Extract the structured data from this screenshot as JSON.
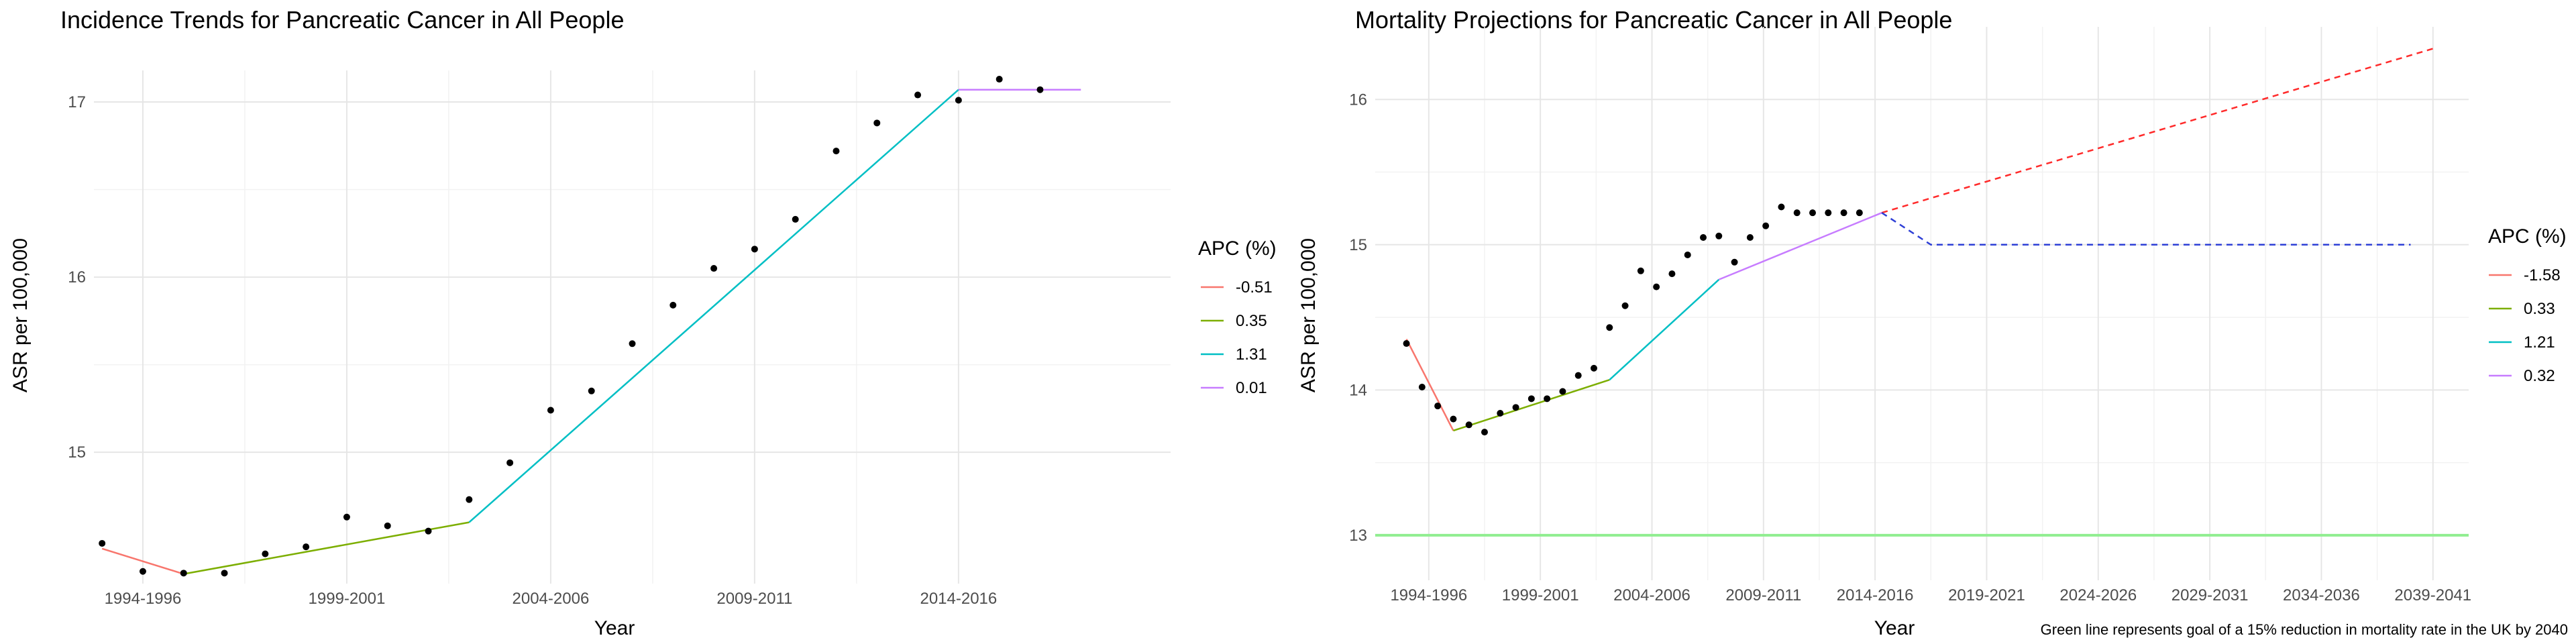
{
  "chart_data": [
    {
      "type": "line",
      "title": "Incidence Trends for Pancreatic Cancer in All People",
      "xlabel": "Year",
      "ylabel": "ASR per 100,000",
      "xlim": [
        1993.8,
        2020.2
      ],
      "ylim": [
        14.25,
        17.18
      ],
      "x_ticks": [
        {
          "x": 1995,
          "label": "1994-1996"
        },
        {
          "x": 2000,
          "label": "1999-2001"
        },
        {
          "x": 2005,
          "label": "2004-2006"
        },
        {
          "x": 2010,
          "label": "2009-2011"
        },
        {
          "x": 2015,
          "label": "2014-2016"
        }
      ],
      "y_ticks": [
        15,
        16,
        17
      ],
      "legend": {
        "title": "APC (%)",
        "position": "right"
      },
      "points": {
        "x": [
          1994,
          1995,
          1996,
          1997,
          1998,
          1999,
          2000,
          2001,
          2002,
          2003,
          2004,
          2005,
          2006,
          2007,
          2008,
          2009,
          2010,
          2011,
          2012,
          2013,
          2014,
          2015,
          2016,
          2017
        ],
        "y": [
          14.48,
          14.32,
          14.31,
          14.31,
          14.42,
          14.46,
          14.63,
          14.58,
          14.55,
          14.73,
          14.94,
          15.24,
          15.35,
          15.62,
          15.84,
          16.05,
          16.16,
          16.33,
          16.72,
          16.88,
          17.04,
          17.01,
          17.13,
          17.07
        ]
      },
      "series": [
        {
          "name": "-0.51",
          "color": "#F8766D",
          "x": [
            1994,
            1996
          ],
          "y": [
            14.45,
            14.305
          ]
        },
        {
          "name": "0.35",
          "color": "#7CAE00",
          "x": [
            1996,
            2003
          ],
          "y": [
            14.305,
            14.6
          ]
        },
        {
          "name": "1.31",
          "color": "#00BFC4",
          "x": [
            2003,
            2015
          ],
          "y": [
            14.6,
            17.07
          ]
        },
        {
          "name": "0.01",
          "color": "#C77CFF",
          "x": [
            2015,
            2018
          ],
          "y": [
            17.07,
            17.07
          ]
        }
      ]
    },
    {
      "type": "line",
      "title": "Mortality Projections for Pancreatic Cancer in All People",
      "xlabel": "Year",
      "ylabel": "ASR per 100,000",
      "xlim": [
        1992.6,
        2041.6
      ],
      "ylim": [
        12.69,
        16.5
      ],
      "x_ticks": [
        {
          "x": 1995,
          "label": "1994-1996"
        },
        {
          "x": 2000,
          "label": "1999-2001"
        },
        {
          "x": 2005,
          "label": "2004-2006"
        },
        {
          "x": 2010,
          "label": "2009-2011"
        },
        {
          "x": 2015,
          "label": "2014-2016"
        },
        {
          "x": 2020,
          "label": "2019-2021"
        },
        {
          "x": 2025,
          "label": "2024-2026"
        },
        {
          "x": 2030,
          "label": "2029-2031"
        },
        {
          "x": 2035,
          "label": "2034-2036"
        },
        {
          "x": 2040,
          "label": "2039-2041"
        }
      ],
      "y_ticks": [
        13,
        14,
        15,
        16
      ],
      "legend": {
        "title": "APC (%)",
        "position": "right"
      },
      "caption": "Green line represents goal of a 15% reduction in mortality rate in the UK by 2040",
      "points": {
        "x": [
          1994,
          1994.7,
          1995.4,
          1996.1,
          1996.8,
          1997.5,
          1998.2,
          1998.9,
          1999.6,
          2000.3,
          2001,
          2001.7,
          2002.4,
          2003.1,
          2003.8,
          2004.5,
          2005.2,
          2005.9,
          2006.6,
          2007.3,
          2008,
          2008.7,
          2009.4,
          2010.1,
          2010.8,
          2011.5,
          2012.2,
          2012.9,
          2013.6,
          2014.3
        ],
        "y": [
          14.32,
          14.02,
          13.89,
          13.8,
          13.76,
          13.71,
          13.84,
          13.88,
          13.94,
          13.94,
          13.99,
          14.1,
          14.15,
          14.43,
          14.58,
          14.82,
          14.71,
          14.8,
          14.93,
          15.05,
          15.06,
          14.88,
          15.05,
          15.13,
          15.26,
          15.22,
          15.22,
          15.22,
          15.22,
          15.22
        ]
      },
      "series": [
        {
          "name": "-1.58",
          "color": "#F8766D",
          "x": [
            1994,
            1996.1
          ],
          "y": [
            14.35,
            13.72
          ]
        },
        {
          "name": "0.33",
          "color": "#7CAE00",
          "x": [
            1996.1,
            2003.1
          ],
          "y": [
            13.72,
            14.07
          ]
        },
        {
          "name": "1.21",
          "color": "#00BFC4",
          "x": [
            2003.1,
            2008
          ],
          "y": [
            14.07,
            14.76
          ]
        },
        {
          "name": "0.32",
          "color": "#C77CFF",
          "x": [
            2008,
            2015.3
          ],
          "y": [
            14.76,
            15.22
          ]
        }
      ],
      "projections": [
        {
          "style": "dashed",
          "color": "#FF2A2A",
          "x": [
            2015.3,
            2040
          ],
          "y": [
            15.22,
            16.35
          ]
        },
        {
          "style": "dashed",
          "color": "#2E3FD6",
          "x": [
            2015.3,
            2017.5,
            2039
          ],
          "y": [
            15.22,
            15.0,
            15.0
          ]
        }
      ],
      "goal_line": {
        "y": 13.0,
        "color": "#90EE90"
      }
    }
  ]
}
